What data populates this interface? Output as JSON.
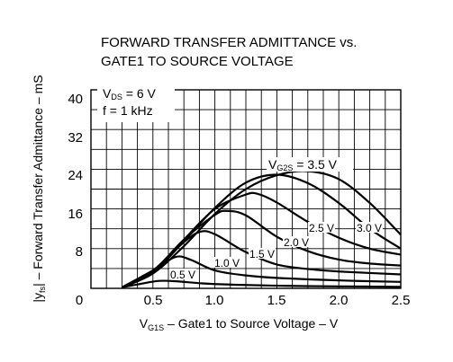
{
  "chart_data": {
    "type": "line",
    "title_lines": [
      "FORWARD TRANSFER ADMITTANCE vs.",
      "GATE1 TO SOURCE VOLTAGE"
    ],
    "xlabel": {
      "main": "V",
      "sub": "G1S",
      "rest": " – Gate1 to Source Voltage – V"
    },
    "ylabel": {
      "pre": "|y",
      "sub": "fs",
      "post": "| – Forward Transfer Admittance – mS"
    },
    "xlim": [
      0,
      2.5
    ],
    "ylim": [
      0,
      40
    ],
    "x_ticks": [
      "0",
      "0.5",
      "1.0",
      "1.5",
      "2.0",
      "2.5"
    ],
    "y_ticks": [
      "8",
      "16",
      "24",
      "32",
      "40"
    ],
    "grid": true,
    "conditions": {
      "line1": {
        "main": "V",
        "sub": "DS",
        "rest": " = 6 V"
      },
      "line2": "f = 1 kHz"
    },
    "series": [
      {
        "label": "3.5 V",
        "label_prefix": "V",
        "label_sub": "G2S",
        "label_rest": " = 3.5 V",
        "x": [
          0.25,
          0.5,
          0.75,
          1.0,
          1.25,
          1.5,
          1.75,
          2.0,
          2.25,
          2.5
        ],
        "y": [
          0.2,
          3.0,
          8.5,
          15.0,
          20.0,
          22.8,
          23.6,
          22.0,
          17.2,
          10.8
        ]
      },
      {
        "label": "3.0 V",
        "x": [
          0.25,
          0.5,
          0.75,
          1.0,
          1.25,
          1.5,
          1.75,
          2.0,
          2.25,
          2.5
        ],
        "y": [
          0.2,
          3.2,
          9.5,
          16.2,
          21.3,
          22.9,
          21.2,
          17.2,
          12.0,
          8.0
        ]
      },
      {
        "label": "2.5 V",
        "x": [
          0.25,
          0.5,
          0.75,
          1.0,
          1.25,
          1.35,
          1.5,
          1.75,
          2.0,
          2.25,
          2.5
        ],
        "y": [
          0.2,
          3.2,
          9.8,
          16.0,
          18.9,
          19.0,
          17.3,
          13.4,
          10.2,
          8.0,
          6.8
        ]
      },
      {
        "label": "2.0 V",
        "x": [
          0.25,
          0.5,
          0.75,
          1.0,
          1.1,
          1.25,
          1.5,
          1.75,
          2.0,
          2.25,
          2.5
        ],
        "y": [
          0.2,
          3.5,
          9.8,
          14.8,
          15.6,
          14.7,
          10.4,
          7.5,
          5.8,
          5.0,
          4.6
        ]
      },
      {
        "label": "1.5 V",
        "x": [
          0.25,
          0.5,
          0.75,
          0.88,
          1.0,
          1.25,
          1.5,
          1.75,
          2.0,
          2.5
        ],
        "y": [
          0.2,
          3.6,
          9.3,
          11.4,
          10.9,
          7.3,
          4.8,
          3.9,
          3.4,
          2.8
        ]
      },
      {
        "label": "1.0 V",
        "x": [
          0.25,
          0.5,
          0.68,
          0.8,
          1.0,
          1.25,
          1.5,
          2.0,
          2.5
        ],
        "y": [
          0.2,
          3.6,
          6.3,
          5.8,
          3.6,
          2.6,
          2.1,
          1.6,
          1.3
        ]
      },
      {
        "label": "0.5 V",
        "x": [
          0.25,
          0.4,
          0.55,
          0.7,
          0.9,
          1.2,
          1.6,
          2.0,
          2.5
        ],
        "y": [
          0.2,
          0.9,
          1.5,
          1.4,
          1.0,
          0.7,
          0.5,
          0.4,
          0.3
        ]
      }
    ]
  }
}
